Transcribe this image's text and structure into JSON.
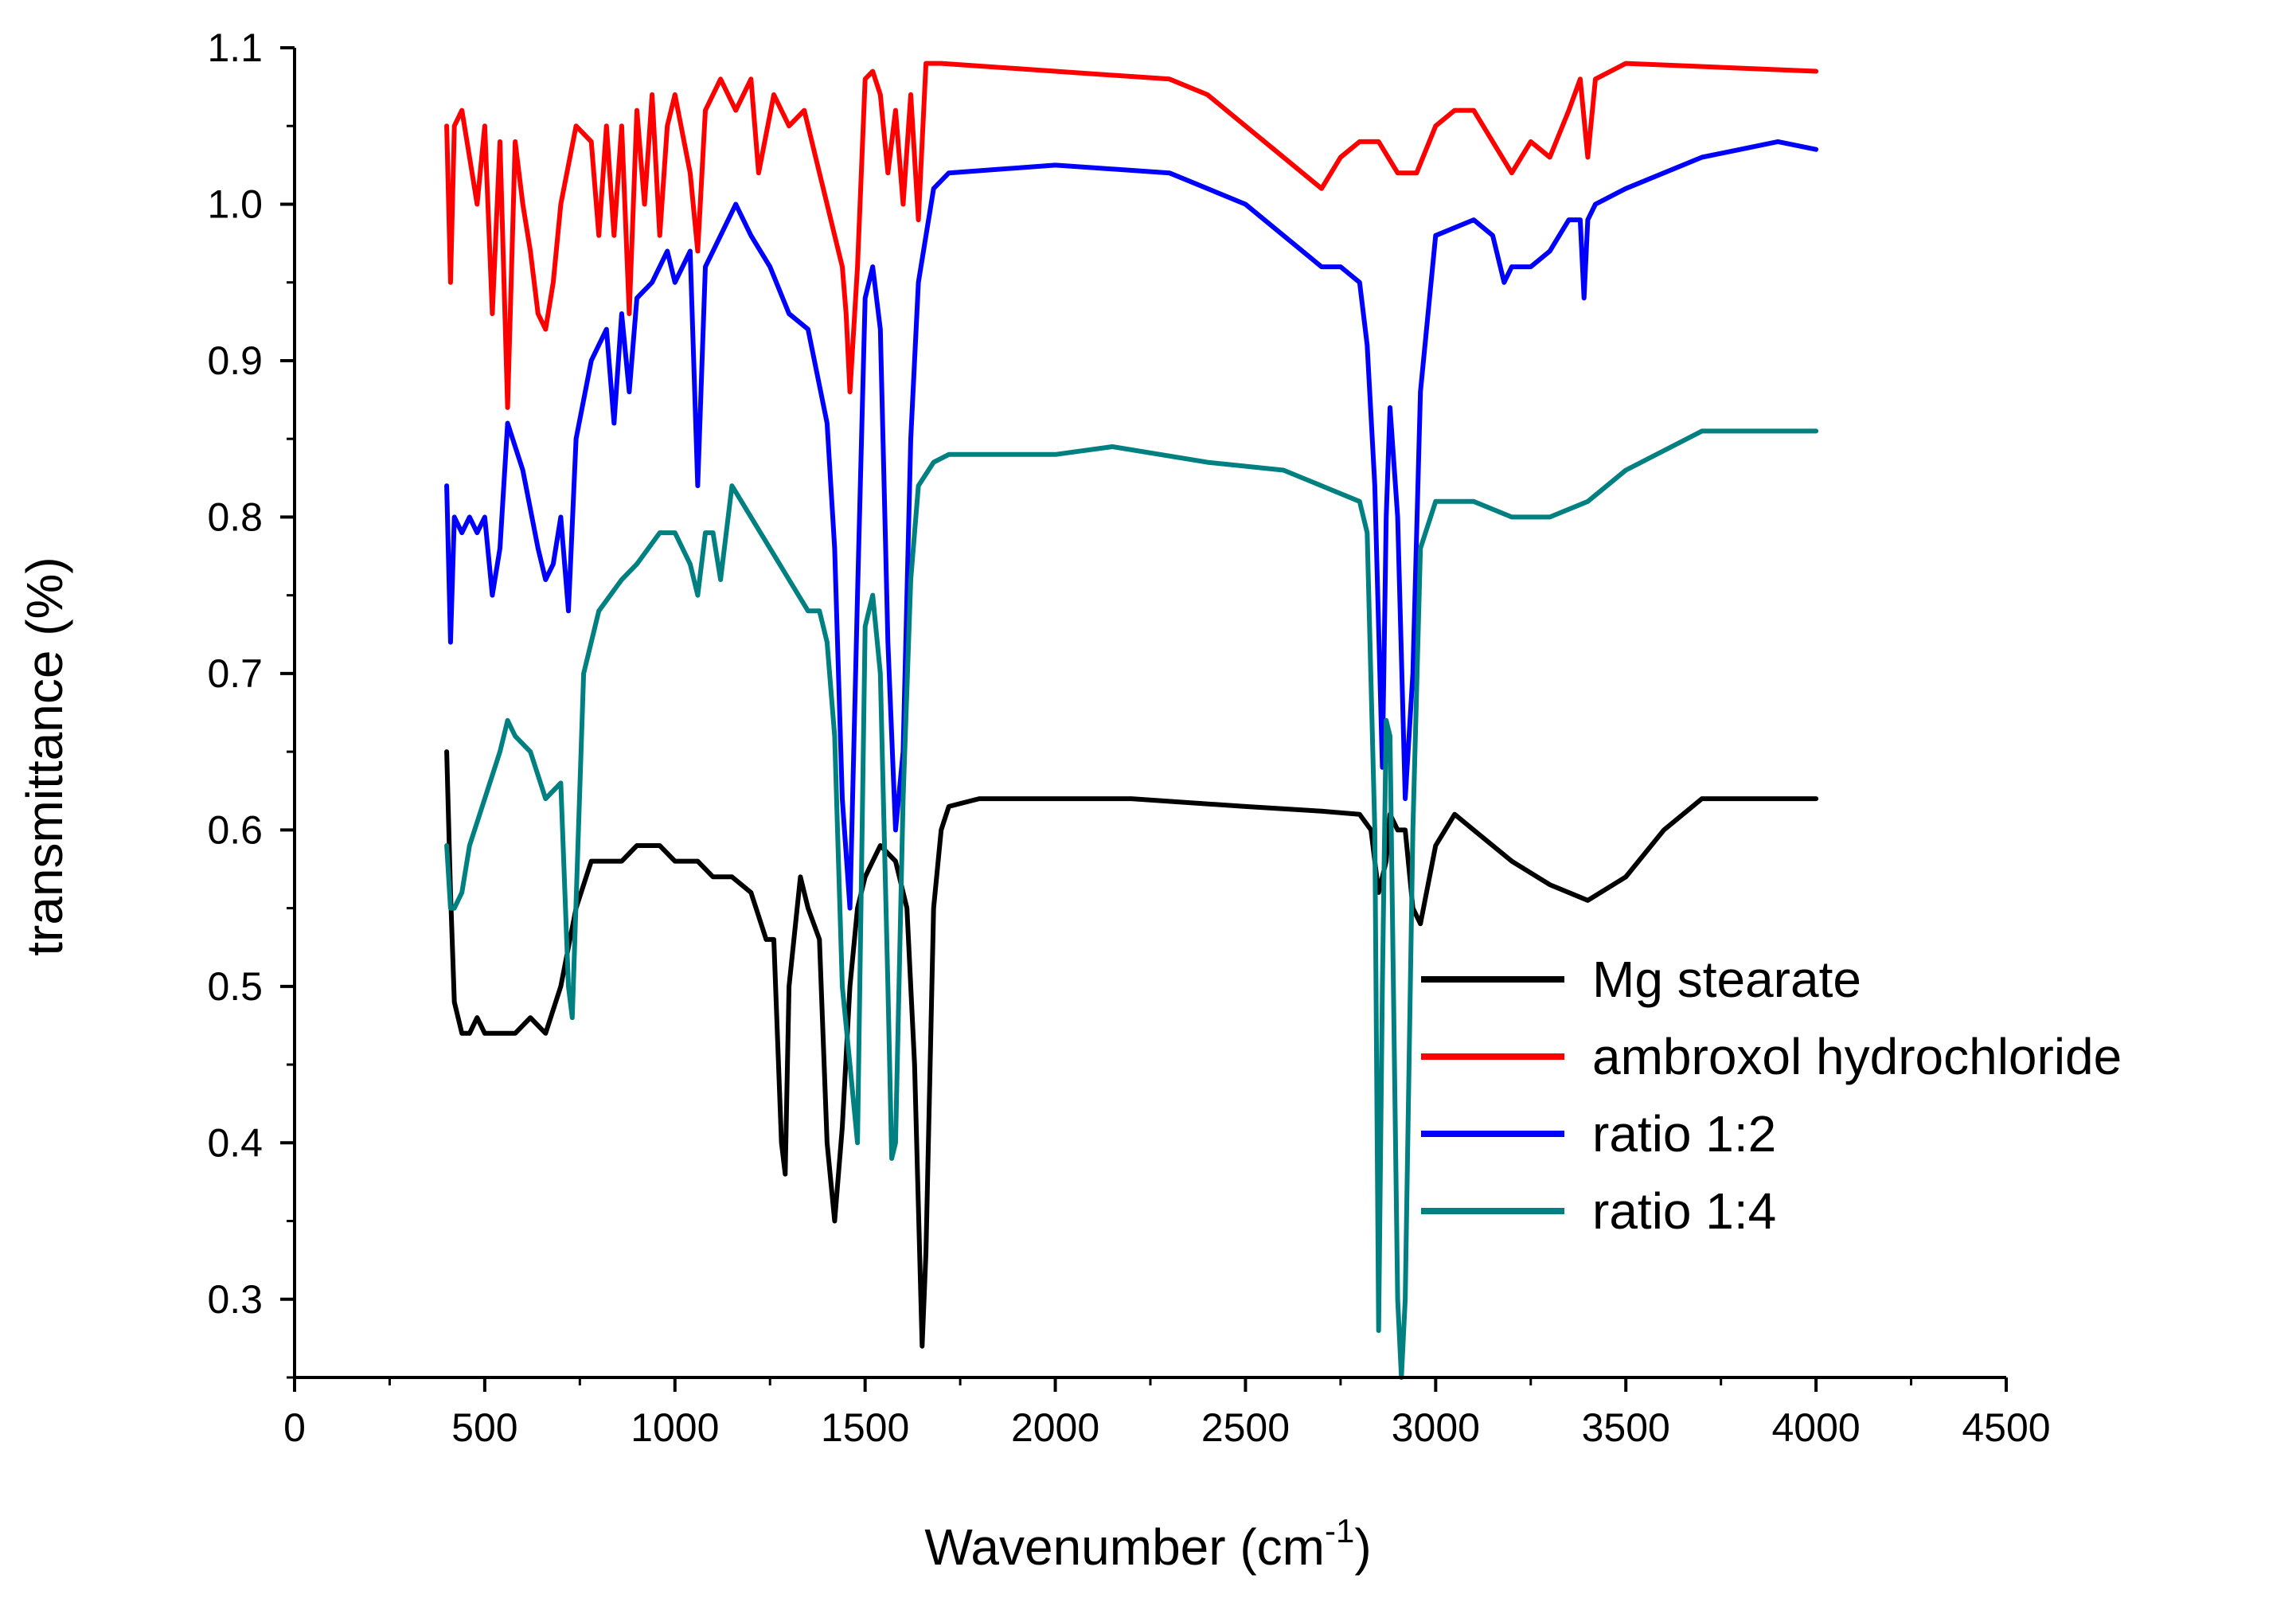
{
  "chart_data": {
    "type": "line",
    "title": "",
    "xlabel": "Wavenumber (cm",
    "xlabel_sup": "-1",
    "xlabel_close": ")",
    "ylabel": "transmittance (%)",
    "xlim": [
      0,
      4500
    ],
    "ylim": [
      0.25,
      1.1
    ],
    "xticks": [
      0,
      500,
      1000,
      1500,
      2000,
      2500,
      3000,
      3500,
      4000,
      4500
    ],
    "xtick_labels": [
      "0",
      "500",
      "1000",
      "1500",
      "2000",
      "2500",
      "3000",
      "3500",
      "4000",
      "4500"
    ],
    "yticks": [
      0.3,
      0.4,
      0.5,
      0.6,
      0.7,
      0.8,
      0.9,
      1.0,
      1.1
    ],
    "ytick_labels": [
      "0.3",
      "0.4",
      "0.5",
      "0.6",
      "0.7",
      "0.8",
      "0.9",
      "1.0",
      "1.1"
    ],
    "grid": false,
    "legend_position": "lower-right",
    "series": [
      {
        "name": "Mg stearate",
        "color": "#000000",
        "x": [
          400,
          410,
          420,
          440,
          460,
          480,
          500,
          540,
          580,
          620,
          660,
          700,
          740,
          780,
          820,
          860,
          900,
          960,
          1000,
          1060,
          1100,
          1150,
          1200,
          1240,
          1260,
          1280,
          1290,
          1300,
          1330,
          1350,
          1380,
          1400,
          1420,
          1440,
          1460,
          1480,
          1500,
          1520,
          1540,
          1580,
          1610,
          1630,
          1650,
          1660,
          1680,
          1700,
          1720,
          1800,
          2000,
          2200,
          2500,
          2700,
          2800,
          2830,
          2850,
          2870,
          2880,
          2900,
          2920,
          2940,
          2960,
          3000,
          3050,
          3100,
          3200,
          3300,
          3400,
          3500,
          3600,
          3700,
          3800,
          4000
        ],
        "y": [
          0.65,
          0.56,
          0.49,
          0.47,
          0.47,
          0.48,
          0.47,
          0.47,
          0.47,
          0.48,
          0.47,
          0.5,
          0.55,
          0.58,
          0.58,
          0.58,
          0.59,
          0.59,
          0.58,
          0.58,
          0.57,
          0.57,
          0.56,
          0.53,
          0.53,
          0.4,
          0.38,
          0.5,
          0.57,
          0.55,
          0.53,
          0.4,
          0.35,
          0.41,
          0.5,
          0.55,
          0.57,
          0.58,
          0.59,
          0.58,
          0.55,
          0.45,
          0.27,
          0.33,
          0.55,
          0.6,
          0.615,
          0.62,
          0.62,
          0.62,
          0.615,
          0.612,
          0.61,
          0.6,
          0.56,
          0.58,
          0.61,
          0.6,
          0.6,
          0.55,
          0.54,
          0.59,
          0.61,
          0.6,
          0.58,
          0.565,
          0.555,
          0.57,
          0.6,
          0.62,
          0.62,
          0.62
        ]
      },
      {
        "name": "ambroxol hydrochloride",
        "color": "#ff0000",
        "x": [
          400,
          410,
          420,
          440,
          460,
          480,
          500,
          520,
          540,
          560,
          580,
          600,
          620,
          640,
          660,
          680,
          700,
          740,
          780,
          800,
          820,
          840,
          860,
          880,
          900,
          920,
          940,
          960,
          980,
          1000,
          1040,
          1060,
          1080,
          1120,
          1160,
          1200,
          1220,
          1260,
          1300,
          1340,
          1380,
          1400,
          1420,
          1440,
          1450,
          1460,
          1480,
          1500,
          1520,
          1540,
          1560,
          1580,
          1600,
          1620,
          1640,
          1660,
          1700,
          2000,
          2300,
          2400,
          2500,
          2600,
          2650,
          2700,
          2750,
          2800,
          2850,
          2900,
          2950,
          3000,
          3050,
          3100,
          3150,
          3200,
          3250,
          3300,
          3350,
          3380,
          3400,
          3420,
          3500,
          4000
        ],
        "y": [
          1.05,
          0.95,
          1.05,
          1.06,
          1.03,
          1.0,
          1.05,
          0.93,
          1.04,
          0.87,
          1.04,
          1.0,
          0.97,
          0.93,
          0.92,
          0.95,
          1.0,
          1.05,
          1.04,
          0.98,
          1.05,
          0.98,
          1.05,
          0.93,
          1.06,
          1.0,
          1.07,
          0.98,
          1.05,
          1.07,
          1.02,
          0.97,
          1.06,
          1.08,
          1.06,
          1.08,
          1.02,
          1.07,
          1.05,
          1.06,
          1.02,
          1.0,
          0.98,
          0.96,
          0.93,
          0.88,
          0.96,
          1.08,
          1.085,
          1.07,
          1.02,
          1.06,
          1.0,
          1.07,
          0.99,
          1.09,
          1.09,
          1.085,
          1.08,
          1.07,
          1.05,
          1.03,
          1.02,
          1.01,
          1.03,
          1.04,
          1.04,
          1.02,
          1.02,
          1.05,
          1.06,
          1.06,
          1.04,
          1.02,
          1.04,
          1.03,
          1.06,
          1.08,
          1.03,
          1.08,
          1.09,
          1.085
        ]
      },
      {
        "name": "ratio 1:2",
        "color": "#0000ff",
        "x": [
          400,
          410,
          420,
          440,
          460,
          480,
          500,
          520,
          540,
          560,
          600,
          640,
          660,
          680,
          700,
          720,
          740,
          780,
          820,
          840,
          860,
          880,
          900,
          940,
          980,
          1000,
          1040,
          1060,
          1080,
          1100,
          1140,
          1160,
          1200,
          1250,
          1300,
          1350,
          1400,
          1420,
          1440,
          1460,
          1480,
          1500,
          1520,
          1540,
          1560,
          1580,
          1600,
          1620,
          1640,
          1680,
          1720,
          2000,
          2300,
          2500,
          2600,
          2700,
          2750,
          2800,
          2820,
          2840,
          2860,
          2870,
          2880,
          2900,
          2920,
          2940,
          2960,
          3000,
          3100,
          3150,
          3180,
          3200,
          3250,
          3300,
          3350,
          3380,
          3390,
          3400,
          3420,
          3500,
          3700,
          3900,
          4000
        ],
        "y": [
          0.82,
          0.72,
          0.8,
          0.79,
          0.8,
          0.79,
          0.8,
          0.75,
          0.78,
          0.86,
          0.83,
          0.78,
          0.76,
          0.77,
          0.8,
          0.74,
          0.85,
          0.9,
          0.92,
          0.86,
          0.93,
          0.88,
          0.94,
          0.95,
          0.97,
          0.95,
          0.97,
          0.82,
          0.96,
          0.97,
          0.99,
          1.0,
          0.98,
          0.96,
          0.93,
          0.92,
          0.86,
          0.78,
          0.62,
          0.55,
          0.75,
          0.94,
          0.96,
          0.92,
          0.72,
          0.6,
          0.65,
          0.85,
          0.95,
          1.01,
          1.02,
          1.025,
          1.02,
          1.0,
          0.98,
          0.96,
          0.96,
          0.95,
          0.91,
          0.82,
          0.64,
          0.8,
          0.87,
          0.8,
          0.62,
          0.7,
          0.88,
          0.98,
          0.99,
          0.98,
          0.95,
          0.96,
          0.96,
          0.97,
          0.99,
          0.99,
          0.94,
          0.99,
          1.0,
          1.01,
          1.03,
          1.04,
          1.035
        ]
      },
      {
        "name": "ratio 1:4",
        "color": "#008080",
        "x": [
          400,
          410,
          420,
          440,
          460,
          500,
          540,
          560,
          580,
          620,
          660,
          700,
          720,
          730,
          760,
          800,
          860,
          900,
          960,
          1000,
          1040,
          1060,
          1080,
          1100,
          1120,
          1150,
          1200,
          1250,
          1300,
          1350,
          1380,
          1400,
          1420,
          1440,
          1460,
          1480,
          1500,
          1520,
          1540,
          1560,
          1570,
          1580,
          1600,
          1620,
          1640,
          1680,
          1720,
          2000,
          2150,
          2400,
          2600,
          2700,
          2800,
          2820,
          2840,
          2850,
          2860,
          2870,
          2880,
          2900,
          2910,
          2920,
          2940,
          2960,
          3000,
          3100,
          3200,
          3300,
          3400,
          3500,
          3700,
          3800,
          4000
        ],
        "y": [
          0.59,
          0.55,
          0.55,
          0.56,
          0.59,
          0.62,
          0.65,
          0.67,
          0.66,
          0.65,
          0.62,
          0.63,
          0.5,
          0.48,
          0.7,
          0.74,
          0.76,
          0.77,
          0.79,
          0.79,
          0.77,
          0.75,
          0.79,
          0.79,
          0.76,
          0.82,
          0.8,
          0.78,
          0.76,
          0.74,
          0.74,
          0.72,
          0.66,
          0.5,
          0.45,
          0.4,
          0.73,
          0.75,
          0.7,
          0.5,
          0.39,
          0.4,
          0.62,
          0.76,
          0.82,
          0.835,
          0.84,
          0.84,
          0.845,
          0.835,
          0.83,
          0.82,
          0.81,
          0.79,
          0.6,
          0.28,
          0.5,
          0.67,
          0.66,
          0.3,
          0.25,
          0.3,
          0.6,
          0.78,
          0.81,
          0.81,
          0.8,
          0.8,
          0.81,
          0.83,
          0.855,
          0.855,
          0.855
        ]
      }
    ]
  }
}
